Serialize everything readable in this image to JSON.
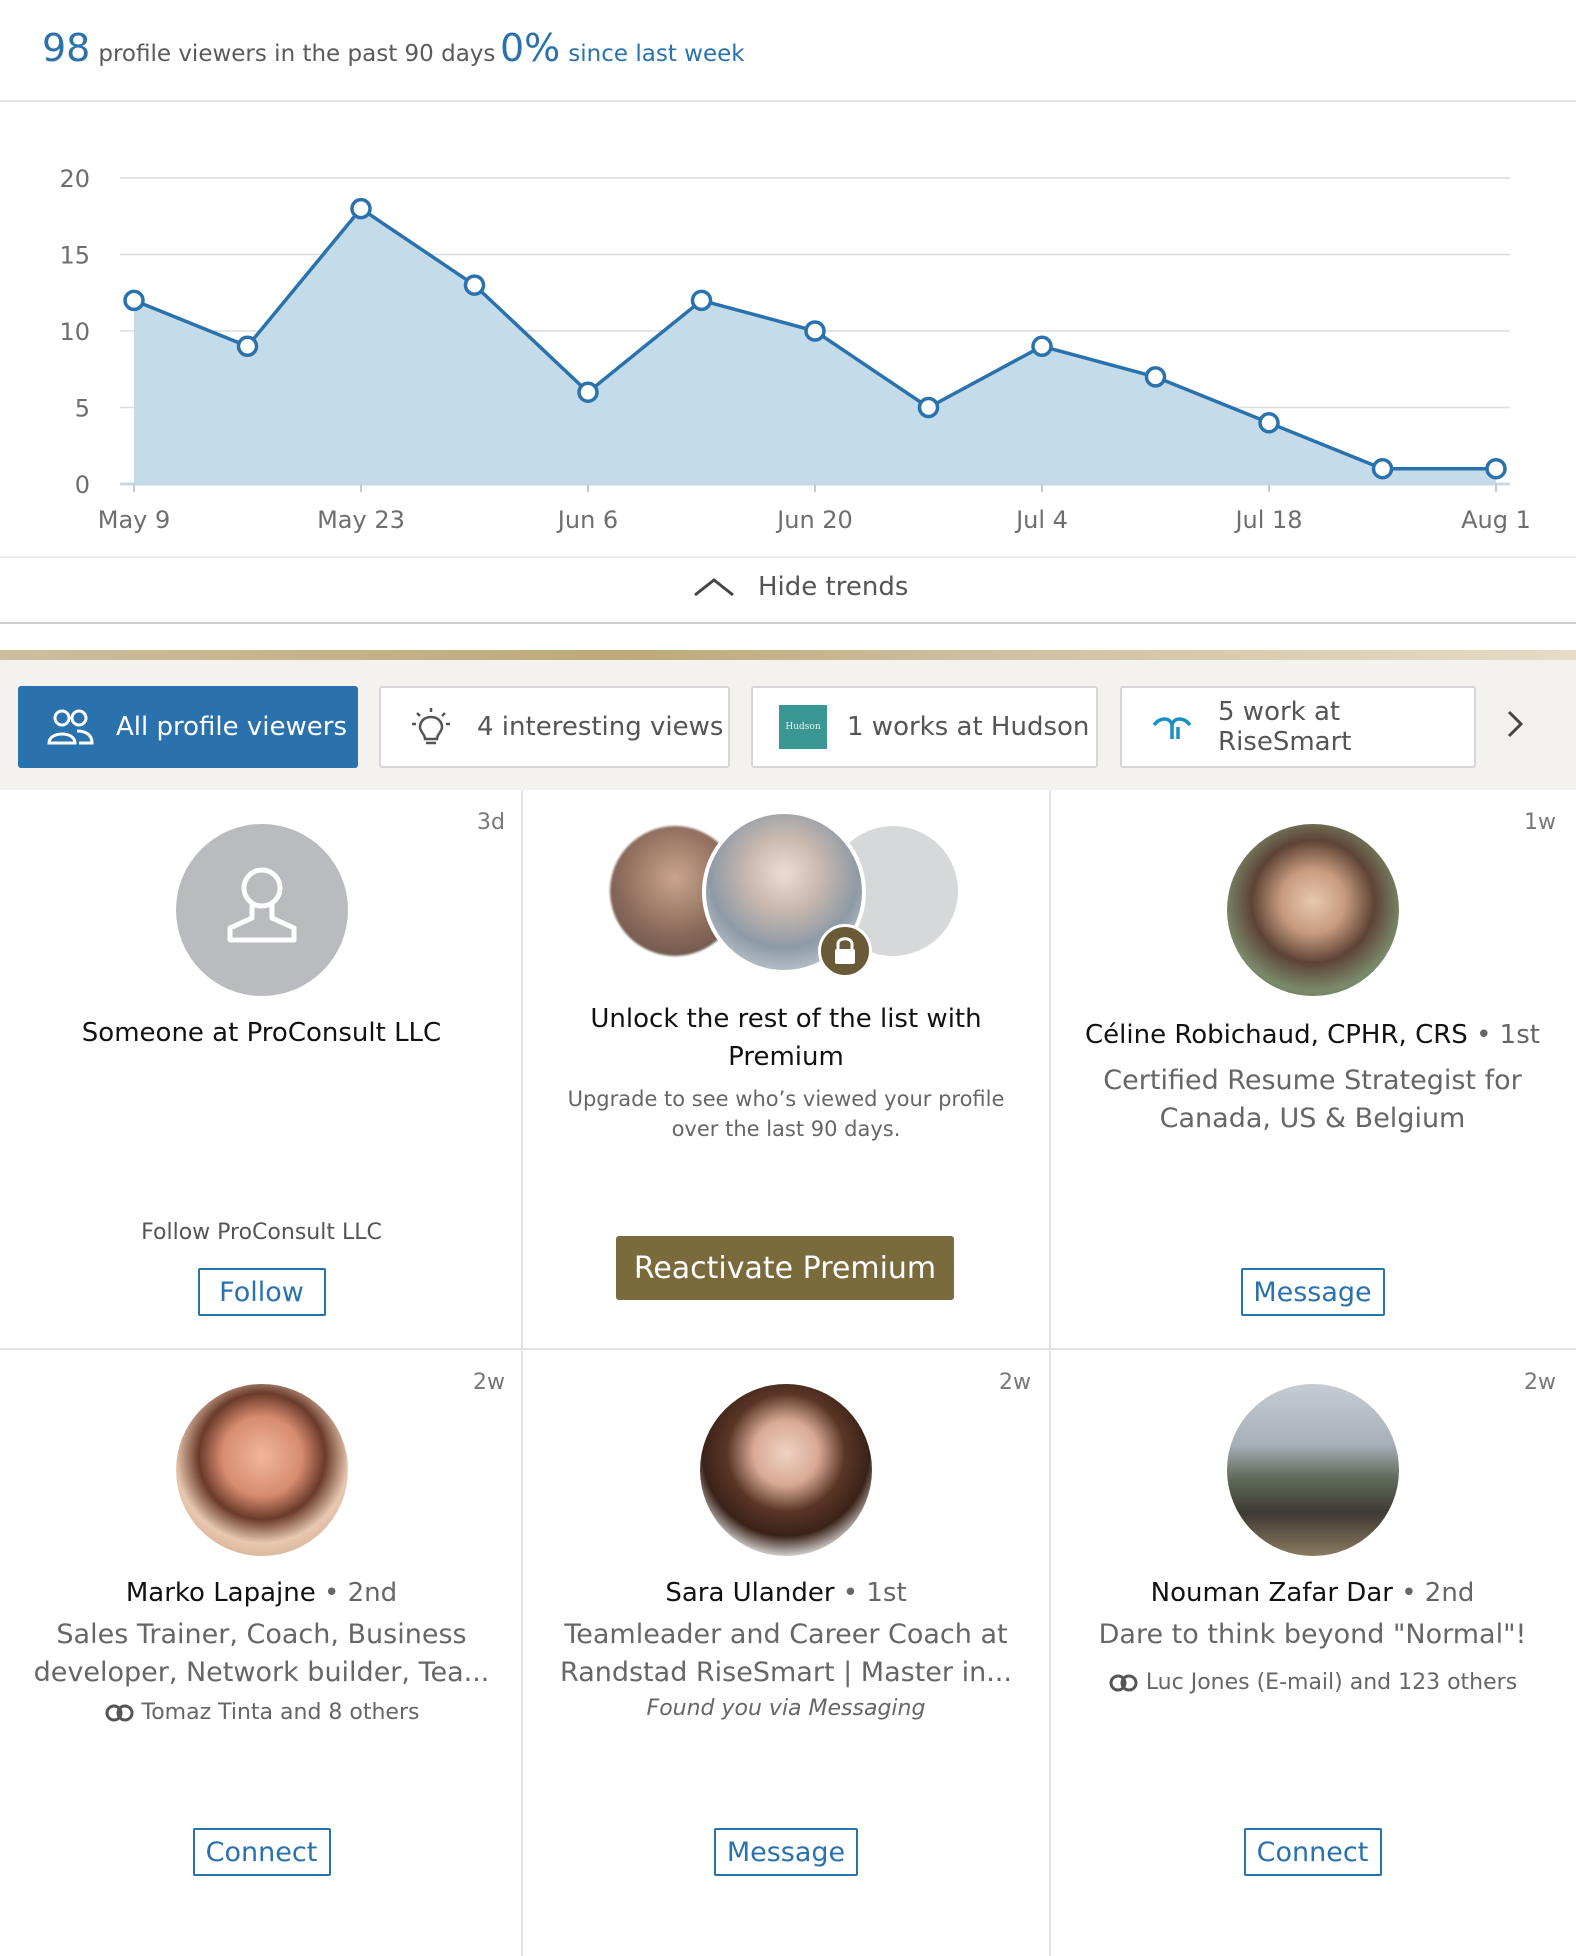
{
  "stats": {
    "viewers_count": "98",
    "viewers_label": "profile viewers in the past 90 days",
    "change_value": "0%",
    "change_label": "since last week"
  },
  "chart_data": {
    "type": "area",
    "x_ticks": [
      "May 9",
      "May 23",
      "Jun 6",
      "Jun 20",
      "Jul 4",
      "Jul 18",
      "Aug 1"
    ],
    "y_ticks": [
      "0",
      "5",
      "10",
      "15",
      "20"
    ],
    "ylim": [
      0,
      20
    ],
    "x_count": 13,
    "values": [
      12,
      9,
      18,
      13,
      6,
      12,
      10,
      5,
      9,
      7,
      4,
      1,
      1
    ],
    "grid": true,
    "colors": {
      "line": "#2a72ad",
      "fill": "#c4dbea"
    }
  },
  "trends": {
    "label": "Hide trends"
  },
  "filters": [
    {
      "label": "All profile viewers"
    },
    {
      "label": "4 interesting views"
    },
    {
      "label": "1 works at Hudson",
      "logo_text": "Hudson"
    },
    {
      "label": "5 work at RiseSmart"
    }
  ],
  "cards": {
    "c1": {
      "time": "3d",
      "name": "Someone at ProConsult LLC",
      "note": "Follow ProConsult LLC",
      "button": "Follow"
    },
    "c2": {
      "title": "Unlock the rest of the list with Premium",
      "subtitle": "Upgrade to see who’s viewed your profile over the last 90 days.",
      "button": "Reactivate Premium"
    },
    "c3": {
      "time": "1w",
      "name": "Céline Robichaud, CPHR, CRS",
      "degree": "• 1st",
      "headline": "Certified Resume Strategist for Canada, US & Belgium",
      "button": "Message"
    },
    "c4": {
      "time": "2w",
      "name": "Marko Lapajne",
      "degree": "• 2nd",
      "headline": "Sales Trainer, Coach, Business developer, Network builder, Tea...",
      "shared": "Tomaz Tinta and 8 others",
      "button": "Connect"
    },
    "c5": {
      "time": "2w",
      "name": "Sara Ulander",
      "degree": "• 1st",
      "headline": "Teamleader and Career Coach at Randstad RiseSmart | Master in...",
      "found": "Found you via Messaging",
      "button": "Message"
    },
    "c6": {
      "time": "2w",
      "name": "Nouman Zafar Dar",
      "degree": "• 2nd",
      "headline": "Dare to think beyond \"Normal\"!",
      "shared": "Luc Jones (E-mail) and 123 others",
      "button": "Connect"
    }
  },
  "colors": {
    "accent": "#2a72ad",
    "premium": "#7a6b3d",
    "filter_bg": "#f3f2ee"
  }
}
